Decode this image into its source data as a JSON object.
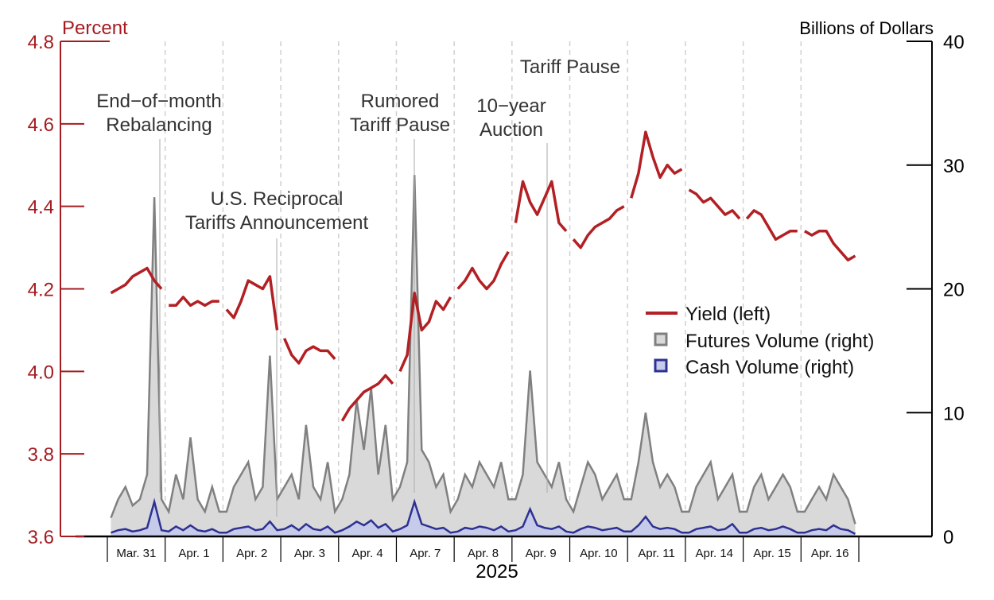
{
  "chart_data": {
    "type": "line",
    "title": "",
    "xlabel": "2025",
    "ylabel_left": "Percent",
    "ylabel_right": "Billions of Dollars",
    "ylim_left": [
      3.6,
      4.8
    ],
    "ylim_right": [
      0,
      40
    ],
    "yticks_left": [
      "3.6",
      "3.8",
      "4.0",
      "4.2",
      "4.4",
      "4.6",
      "4.8"
    ],
    "yticks_right": [
      "0",
      "10",
      "20",
      "30",
      "40"
    ],
    "categories": [
      "Mar. 31",
      "Apr. 1",
      "Apr. 2",
      "Apr. 3",
      "Apr. 4",
      "Apr. 7",
      "Apr. 8",
      "Apr. 9",
      "Apr. 10",
      "Apr. 11",
      "Apr. 14",
      "Apr. 15",
      "Apr. 16"
    ],
    "grid": "vertical dashed at day boundaries",
    "legend_position": "right",
    "colors": {
      "yield": "#b22024",
      "futures_line": "#808080",
      "futures_fill": "#d9d9d9",
      "cash_line": "#2e3192",
      "cash_fill": "#c5cbe8",
      "left_axis": "#a51c20"
    },
    "series": [
      {
        "name": "Yield (left)",
        "axis": "left",
        "values": [
          [
            4.19,
            4.2,
            4.21,
            4.23,
            4.24,
            4.25,
            4.22,
            4.2
          ],
          [
            4.16,
            4.16,
            4.18,
            4.16,
            4.17,
            4.16,
            4.17,
            4.17
          ],
          [
            4.15,
            4.13,
            4.17,
            4.22,
            4.21,
            4.2,
            4.23,
            4.1
          ],
          [
            4.08,
            4.04,
            4.02,
            4.05,
            4.06,
            4.05,
            4.05,
            4.03
          ],
          [
            3.88,
            3.91,
            3.93,
            3.95,
            3.96,
            3.97,
            3.99,
            3.97
          ],
          [
            4.0,
            4.04,
            4.19,
            4.1,
            4.12,
            4.17,
            4.15,
            4.18
          ],
          [
            4.2,
            4.22,
            4.25,
            4.22,
            4.2,
            4.22,
            4.26,
            4.29
          ],
          [
            4.36,
            4.46,
            4.41,
            4.38,
            4.42,
            4.46,
            4.36,
            4.34
          ],
          [
            4.32,
            4.3,
            4.33,
            4.35,
            4.36,
            4.37,
            4.39,
            4.4
          ],
          [
            4.42,
            4.48,
            4.58,
            4.52,
            4.47,
            4.5,
            4.48,
            4.49
          ],
          [
            4.44,
            4.43,
            4.41,
            4.42,
            4.4,
            4.38,
            4.39,
            4.37
          ],
          [
            4.37,
            4.39,
            4.38,
            4.35,
            4.32,
            4.33,
            4.34,
            4.34
          ],
          [
            4.34,
            4.33,
            4.34,
            4.34,
            4.31,
            4.29,
            4.27,
            4.28
          ]
        ]
      },
      {
        "name": "Futures Volume (right)",
        "axis": "right",
        "values": [
          [
            1.5,
            3,
            4,
            2.5,
            3,
            5,
            27.4,
            3
          ],
          [
            2,
            5,
            3,
            8,
            3,
            2,
            4,
            2
          ],
          [
            2,
            4,
            5,
            6,
            3,
            4,
            14.6,
            3
          ],
          [
            4,
            5,
            3,
            9,
            4,
            3,
            6,
            2
          ],
          [
            3,
            5,
            11,
            7,
            12,
            5,
            9,
            3
          ],
          [
            4,
            6,
            29.2,
            7,
            6,
            4,
            5,
            2
          ],
          [
            3,
            5,
            4,
            6,
            5,
            4,
            6,
            3
          ],
          [
            3,
            5,
            13.4,
            6,
            5,
            4,
            6,
            3
          ],
          [
            2,
            4,
            6,
            5,
            3,
            4,
            5,
            3
          ],
          [
            3,
            6,
            10,
            6,
            4,
            5,
            4,
            2
          ],
          [
            2,
            4,
            5,
            6,
            3,
            4,
            5,
            2
          ],
          [
            2,
            4,
            5,
            3,
            4,
            5,
            4,
            2
          ],
          [
            2,
            3,
            4,
            3,
            5,
            4,
            3,
            1
          ]
        ]
      },
      {
        "name": "Cash Volume (right)",
        "axis": "right",
        "values": [
          [
            0.3,
            0.5,
            0.6,
            0.4,
            0.5,
            0.7,
            2.8,
            0.5
          ],
          [
            0.4,
            0.8,
            0.5,
            0.9,
            0.5,
            0.4,
            0.6,
            0.3
          ],
          [
            0.3,
            0.6,
            0.7,
            0.8,
            0.5,
            0.6,
            1.2,
            0.5
          ],
          [
            0.6,
            0.9,
            0.5,
            1.0,
            0.6,
            0.5,
            0.8,
            0.3
          ],
          [
            0.5,
            0.8,
            1.2,
            0.9,
            1.3,
            0.7,
            1.0,
            0.4
          ],
          [
            0.6,
            0.9,
            2.8,
            1.0,
            0.8,
            0.6,
            0.7,
            0.3
          ],
          [
            0.4,
            0.7,
            0.6,
            0.8,
            0.7,
            0.5,
            0.8,
            0.4
          ],
          [
            0.5,
            0.8,
            2.2,
            0.9,
            0.7,
            0.6,
            0.8,
            0.4
          ],
          [
            0.3,
            0.6,
            0.8,
            0.7,
            0.5,
            0.6,
            0.7,
            0.4
          ],
          [
            0.4,
            0.9,
            1.6,
            0.8,
            0.6,
            0.7,
            0.6,
            0.3
          ],
          [
            0.3,
            0.6,
            0.7,
            0.8,
            0.5,
            0.6,
            1.0,
            0.3
          ],
          [
            0.3,
            0.6,
            0.7,
            0.5,
            0.6,
            0.8,
            0.6,
            0.3
          ],
          [
            0.3,
            0.5,
            0.6,
            0.5,
            0.9,
            0.6,
            0.5,
            0.2
          ]
        ]
      }
    ],
    "annotations": [
      {
        "text": [
          "End−of−month",
          "Rebalancing"
        ],
        "day": "Mar. 31"
      },
      {
        "text": [
          "U.S. Reciprocal",
          "Tariffs Announcement"
        ],
        "day": "Apr. 2"
      },
      {
        "text": [
          "Rumored",
          "Tariff Pause"
        ],
        "day": "Apr. 7"
      },
      {
        "text": [
          "10−year",
          "Auction"
        ],
        "day": "Apr. 9"
      },
      {
        "text": [
          "Tariff Pause"
        ],
        "day": "Apr. 9"
      }
    ]
  }
}
